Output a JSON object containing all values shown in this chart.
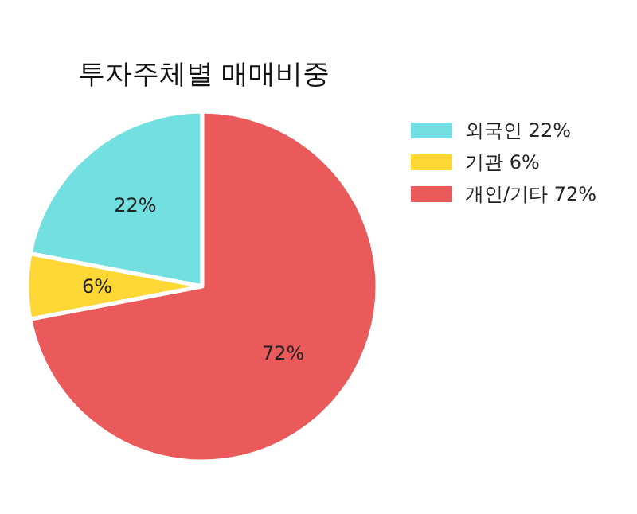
{
  "chart_data": {
    "type": "pie",
    "title": "투자주체별 매매비중",
    "categories": [
      "외국인",
      "기관",
      "개인/기타"
    ],
    "values": [
      22,
      6,
      72
    ],
    "colors": [
      "#72e0e0",
      "#fdd835",
      "#eb5a5a"
    ],
    "value_labels": [
      "22%",
      "6%",
      "72%"
    ],
    "legend": "top right"
  }
}
